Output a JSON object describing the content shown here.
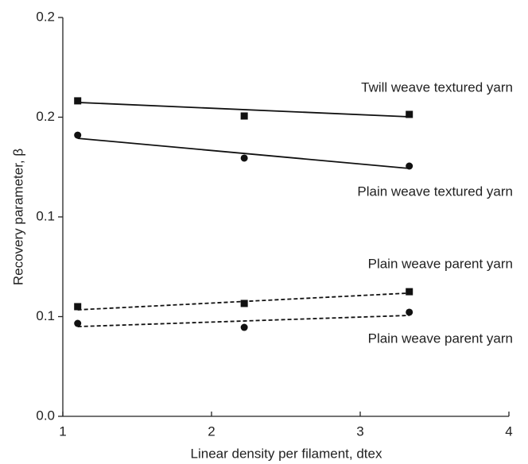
{
  "chart_data": {
    "type": "scatter",
    "xlabel": "Linear density per filament, dtex",
    "ylabel": "Recovery parameter, β",
    "xlim": [
      1,
      4
    ],
    "xticks": [
      1,
      2,
      3,
      4
    ],
    "ylim": [
      0,
      0.2
    ],
    "yticks": [
      {
        "value": 0,
        "label": "0.0"
      },
      {
        "value": 0.05,
        "label": "0.1"
      },
      0.1,
      {
        "value": 0.15,
        "label": "0.2"
      },
      0.2
    ],
    "series": [
      {
        "name": "Twill weave textured yarn",
        "marker": "square",
        "color": "#111",
        "line": "solid",
        "label_position": "above",
        "x": [
          1.1,
          2.22,
          3.33
        ],
        "values": [
          0.1582,
          0.1506,
          0.1514
        ],
        "fit": {
          "x": [
            1.1,
            3.33
          ],
          "values": [
            0.1574,
            0.1502
          ]
        }
      },
      {
        "name": "Plain weave textured yarn",
        "marker": "circle",
        "color": "#111",
        "line": "solid",
        "label_position": "below",
        "x": [
          1.1,
          2.22,
          3.33
        ],
        "values": [
          0.141,
          0.1295,
          0.1255
        ],
        "fit": {
          "x": [
            1.1,
            3.33
          ],
          "values": [
            0.1394,
            0.1243
          ]
        }
      },
      {
        "name": "Plain weave parent yarn",
        "marker": "square",
        "color": "#111",
        "line": "dashed",
        "label_position": "above",
        "x": [
          1.1,
          2.22,
          3.33
        ],
        "values": [
          0.055,
          0.0566,
          0.0625
        ],
        "fit": {
          "x": [
            1.1,
            3.33
          ],
          "values": [
            0.0534,
            0.0618
          ]
        }
      },
      {
        "name": "Plain weave parent yarn",
        "marker": "circle",
        "color": "#111",
        "line": "dashed",
        "label_position": "below",
        "x": [
          1.1,
          2.22,
          3.33
        ],
        "values": [
          0.0466,
          0.0446,
          0.0522
        ],
        "fit": {
          "x": [
            1.1,
            3.33
          ],
          "values": [
            0.045,
            0.0506
          ]
        }
      }
    ]
  }
}
